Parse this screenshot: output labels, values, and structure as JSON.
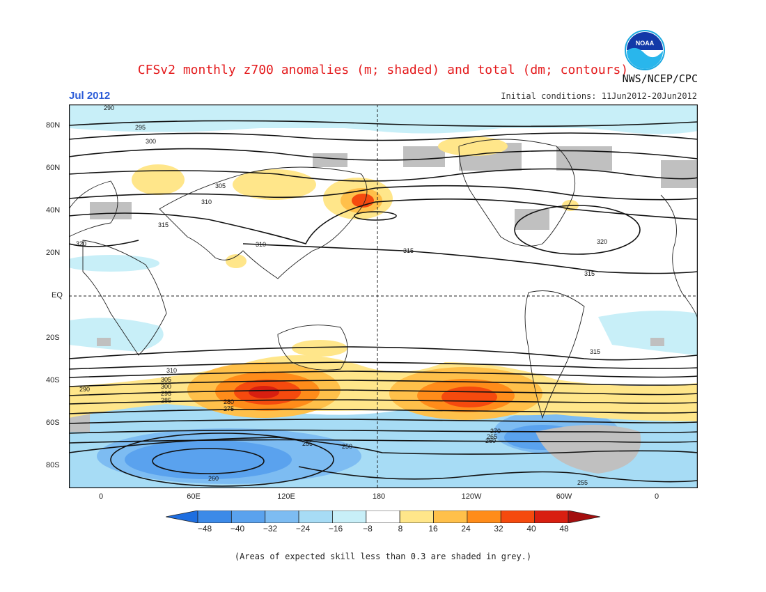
{
  "header": {
    "title": "CFSv2 monthly z700 anomalies (m; shaded) and total (dm; contours)",
    "agency": "NWS/NCEP/CPC",
    "month": "Jul 2012",
    "initial_conditions": "Initial conditions: 11Jun2012-20Jun2012",
    "logo_text": "NOAA"
  },
  "map": {
    "lat_labels": [
      "80N",
      "60N",
      "40N",
      "20N",
      "EQ",
      "20S",
      "40S",
      "60S",
      "80S"
    ],
    "lon_labels": [
      "0",
      "60E",
      "120E",
      "180",
      "120W",
      "60W",
      "0"
    ],
    "contour_labels": [
      "290",
      "295",
      "300",
      "305",
      "310",
      "315",
      "320",
      "310",
      "315",
      "320",
      "315",
      "315",
      "310",
      "305",
      "300",
      "295",
      "290",
      "285",
      "280",
      "275",
      "270",
      "265",
      "260",
      "255",
      "250",
      "260",
      "255"
    ]
  },
  "colorbar": {
    "ticks": [
      "−48",
      "−40",
      "−32",
      "−24",
      "−16",
      "−8",
      "8",
      "16",
      "24",
      "32",
      "40",
      "48"
    ],
    "colors": [
      "#1e6ee0",
      "#3c8ae8",
      "#5aa2ee",
      "#7dbcf2",
      "#a7dcf5",
      "#c8eff8",
      "#ffffff",
      "#ffe68a",
      "#ffc04a",
      "#ff8c1a",
      "#f54a0e",
      "#d81f10",
      "#a40e0e"
    ]
  },
  "footer": {
    "note": "(Areas of expected skill less than 0.3 are shaded in grey.)"
  }
}
